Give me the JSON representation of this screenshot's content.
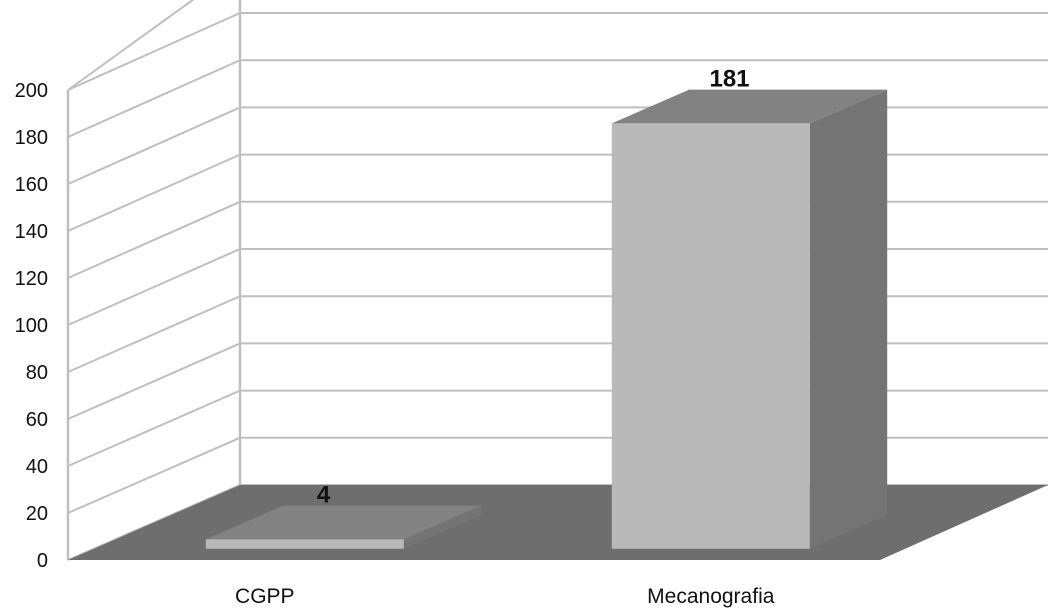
{
  "chart_data": {
    "type": "bar",
    "categories": [
      "CGPP",
      "Mecanografia"
    ],
    "values": [
      4,
      181
    ],
    "data_labels": [
      "4",
      "181"
    ],
    "ylim": [
      0,
      200
    ],
    "yticks": [
      0,
      20,
      40,
      60,
      80,
      100,
      120,
      140,
      160,
      180,
      200
    ],
    "title": "",
    "xlabel": "",
    "ylabel": "",
    "grid": true,
    "three_d": true,
    "colors": {
      "bar_front": "#b9b9b9",
      "bar_side": "#747474",
      "bar_top": "#828282",
      "floor": "#6e6e6e",
      "grid": "#bfbfbf",
      "text": "#111111"
    }
  }
}
